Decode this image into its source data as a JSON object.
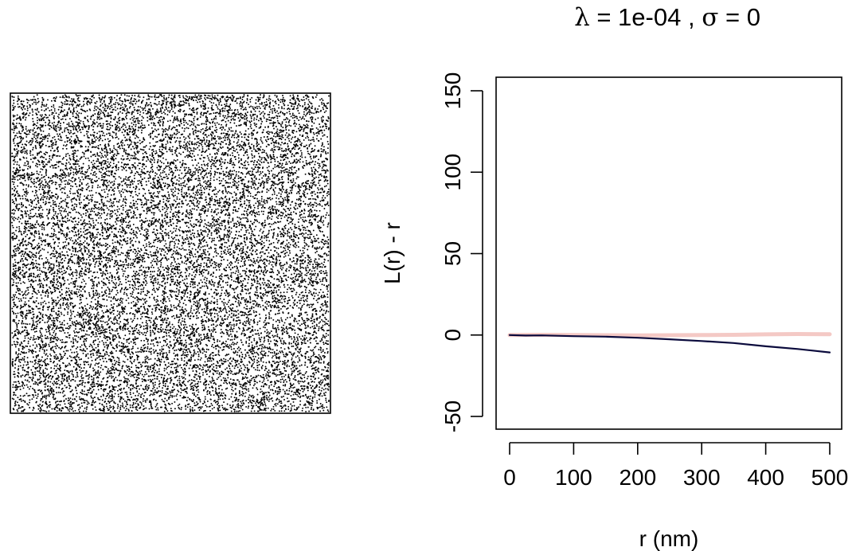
{
  "title": {
    "lambda_symbol": "λ",
    "lambda_text": " = 1e-04 ,  ",
    "sigma_symbol": "σ",
    "sigma_text": " = 0"
  },
  "chart_data": [
    {
      "type": "scatter",
      "panel": "point-pattern",
      "title": "",
      "xlabel": "",
      "ylabel": "",
      "axes_shown": false,
      "points_description_count": 16000,
      "color": "#000000"
    },
    {
      "type": "line",
      "panel": "l-function",
      "title": "",
      "xlabel": "r (nm)",
      "ylabel": "L(r) - r",
      "xlim": [
        0,
        500
      ],
      "ylim": [
        -50,
        150
      ],
      "xticks": [
        "0",
        "100",
        "200",
        "300",
        "400",
        "500"
      ],
      "yticks": [
        "-50",
        "0",
        "50",
        "100",
        "150"
      ],
      "grid": false,
      "legend": "none",
      "series": [
        {
          "color": "#f4c9c5",
          "x": [
            0,
            50,
            100,
            150,
            200,
            250,
            300,
            350,
            400,
            450,
            500
          ],
          "y": [
            0,
            0.1,
            0,
            -0.1,
            -0.2,
            -0.1,
            0,
            0.1,
            0.4,
            0.6,
            0.5
          ]
        },
        {
          "color": "#0a0a3c",
          "x": [
            0,
            25,
            50,
            100,
            150,
            200,
            250,
            300,
            350,
            400,
            450,
            500
          ],
          "y": [
            0,
            -0.3,
            -0.2,
            -0.7,
            -1.0,
            -1.7,
            -2.6,
            -3.7,
            -4.9,
            -6.9,
            -8.6,
            -10.7
          ]
        }
      ]
    }
  ]
}
